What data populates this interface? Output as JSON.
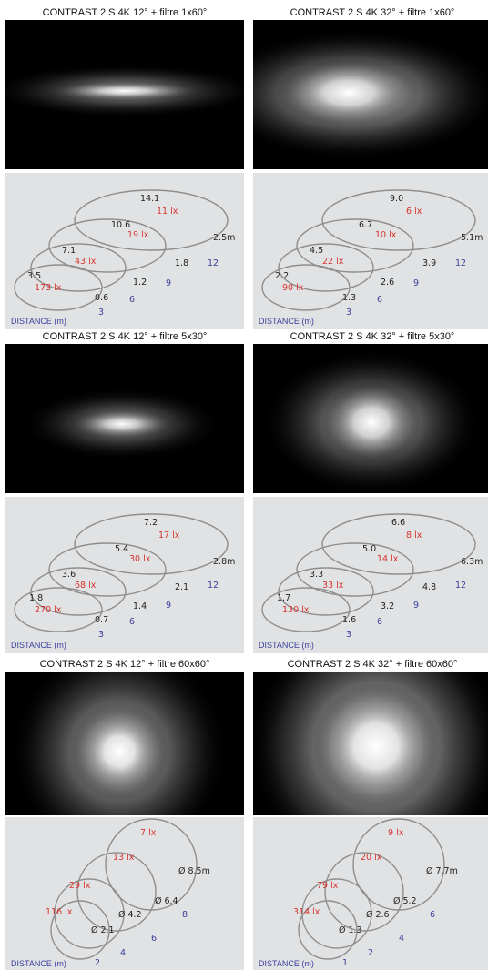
{
  "panels": [
    {
      "title": "CONTRAST 2 S 4K 12° + filtre 1x60°",
      "distance_label": "DISTANCE (m)",
      "diameters": [
        "3.5",
        "7.1",
        "10.6",
        "14.1"
      ],
      "lux": [
        "173 lx",
        "43 lx",
        "19 lx",
        "11 lx"
      ],
      "far_label": "2.5m",
      "depths": [
        "0.6",
        "1.2",
        "1.8"
      ],
      "distances": [
        "3",
        "6",
        "9",
        "12"
      ]
    },
    {
      "title": "CONTRAST 2 S 4K 32° + filtre 1x60°",
      "distance_label": "DISTANCE (m)",
      "diameters": [
        "2.2",
        "4.5",
        "6.7",
        "9.0"
      ],
      "lux": [
        "90 lx",
        "22 lx",
        "10 lx",
        "6 lx"
      ],
      "far_label": "5.1m",
      "depths": [
        "1.3",
        "2.6",
        "3.9"
      ],
      "distances": [
        "3",
        "6",
        "9",
        "12"
      ]
    },
    {
      "title": "CONTRAST 2 S 4K 12° + filtre 5x30°",
      "distance_label": "DISTANCE (m)",
      "diameters": [
        "1.8",
        "3.6",
        "5.4",
        "7.2"
      ],
      "lux": [
        "270 lx",
        "68 lx",
        "30 lx",
        "17 lx"
      ],
      "far_label": "2.8m",
      "depths": [
        "0.7",
        "1.4",
        "2.1"
      ],
      "distances": [
        "3",
        "6",
        "9",
        "12"
      ]
    },
    {
      "title": "CONTRAST 2 S 4K 32° + filtre 5x30°",
      "distance_label": "DISTANCE (m)",
      "diameters": [
        "1.7",
        "3.3",
        "5.0",
        "6.6"
      ],
      "lux": [
        "130 lx",
        "33 lx",
        "14 lx",
        "8 lx"
      ],
      "far_label": "6.3m",
      "depths": [
        "1.6",
        "3.2",
        "4.8"
      ],
      "distances": [
        "3",
        "6",
        "9",
        "12"
      ]
    },
    {
      "title": "CONTRAST 2 S 4K 12° + filtre 60x60°",
      "distance_label": "DISTANCE (m)",
      "lux": [
        "116 lx",
        "29 lx",
        "13 lx",
        "7 lx"
      ],
      "diam_labels": [
        "Ø 2.1",
        "Ø 4.2",
        "Ø 6.4",
        "Ø 8.5m"
      ],
      "distances": [
        "2",
        "4",
        "6",
        "8"
      ]
    },
    {
      "title": "CONTRAST 2 S 4K 32° + filtre 60x60°",
      "distance_label": "DISTANCE (m)",
      "lux": [
        "314 lx",
        "79 lx",
        "20 lx",
        "9 lx"
      ],
      "diam_labels": [
        "Ø 1.3",
        "Ø 2.6",
        "Ø 5.2",
        "Ø 7.7m"
      ],
      "distances": [
        "1",
        "2",
        "4",
        "6"
      ]
    }
  ]
}
